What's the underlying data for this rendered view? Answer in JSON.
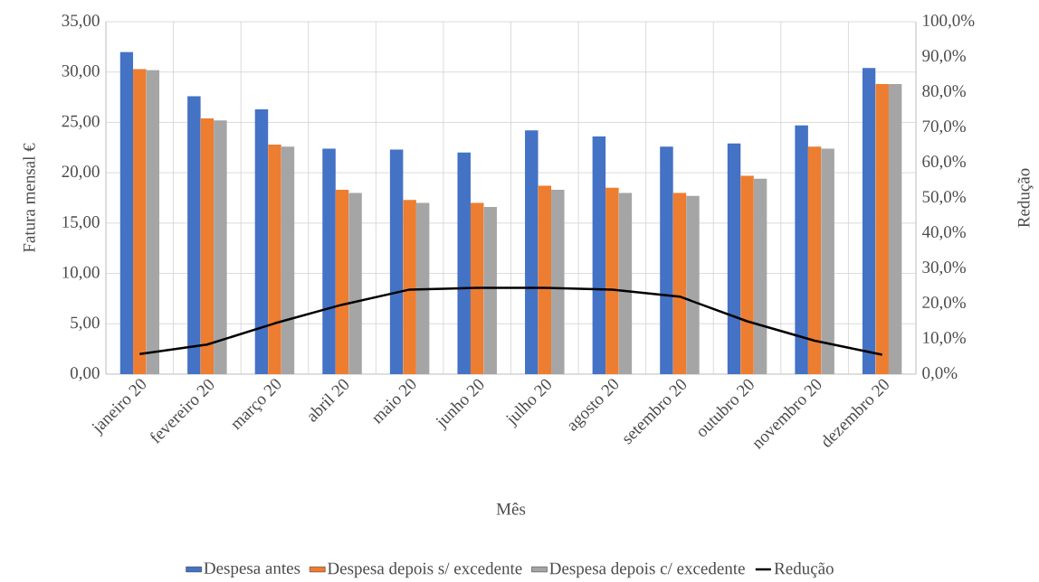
{
  "chart_data": {
    "type": "bar",
    "xlabel": "Mês",
    "ylabel": "Fatura mensal €",
    "y2label": "Redução",
    "categories": [
      "janeiro 20",
      "fevereiro 20",
      "março 20",
      "abril 20",
      "maio 20",
      "junho 20",
      "julho 20",
      "agosto 20",
      "setembro 20",
      "outubro 20",
      "novembro 20",
      "dezembro 20"
    ],
    "series": [
      {
        "name": "Despesa antes",
        "color": "#4472c4",
        "values": [
          32.0,
          27.6,
          26.3,
          22.4,
          22.3,
          22.0,
          24.2,
          23.6,
          22.6,
          22.9,
          24.7,
          30.4
        ]
      },
      {
        "name": "Despesa depois s/ excedente",
        "color": "#ed7d31",
        "values": [
          30.3,
          25.4,
          22.8,
          18.3,
          17.3,
          17.0,
          18.7,
          18.5,
          18.0,
          19.7,
          22.6,
          28.8
        ]
      },
      {
        "name": "Despesa depois c/ excedente",
        "color": "#a5a5a5",
        "values": [
          30.2,
          25.2,
          22.6,
          18.0,
          17.0,
          16.6,
          18.3,
          18.0,
          17.7,
          19.4,
          22.4,
          28.8
        ]
      },
      {
        "name": "Redução",
        "type": "line",
        "axis": "y2",
        "color": "#000000",
        "values": [
          5.7,
          8.4,
          14.4,
          19.7,
          24.0,
          24.5,
          24.5,
          24.0,
          22.0,
          15.0,
          9.5,
          5.5
        ]
      }
    ],
    "ylim": [
      0,
      35
    ],
    "yticks": [
      {
        "value": 0,
        "label": "0,00"
      },
      {
        "value": 5,
        "label": "5,00"
      },
      {
        "value": 10,
        "label": "10,00"
      },
      {
        "value": 15,
        "label": "15,00"
      },
      {
        "value": 20,
        "label": "20,00"
      },
      {
        "value": 25,
        "label": "25,00"
      },
      {
        "value": 30,
        "label": "30,00"
      },
      {
        "value": 35,
        "label": "35,00"
      }
    ],
    "y2lim": [
      0,
      100
    ],
    "y2ticks": [
      {
        "value": 0,
        "label": "0,0%"
      },
      {
        "value": 10,
        "label": "10,0%"
      },
      {
        "value": 20,
        "label": "20,0%"
      },
      {
        "value": 30,
        "label": "30,0%"
      },
      {
        "value": 40,
        "label": "40,0%"
      },
      {
        "value": 50,
        "label": "50,0%"
      },
      {
        "value": 60,
        "label": "60,0%"
      },
      {
        "value": 70,
        "label": "70,0%"
      },
      {
        "value": 80,
        "label": "80,0%"
      },
      {
        "value": 90,
        "label": "90,0%"
      },
      {
        "value": 100,
        "label": "100,0%"
      }
    ],
    "grid": true,
    "legend": "bottom"
  }
}
